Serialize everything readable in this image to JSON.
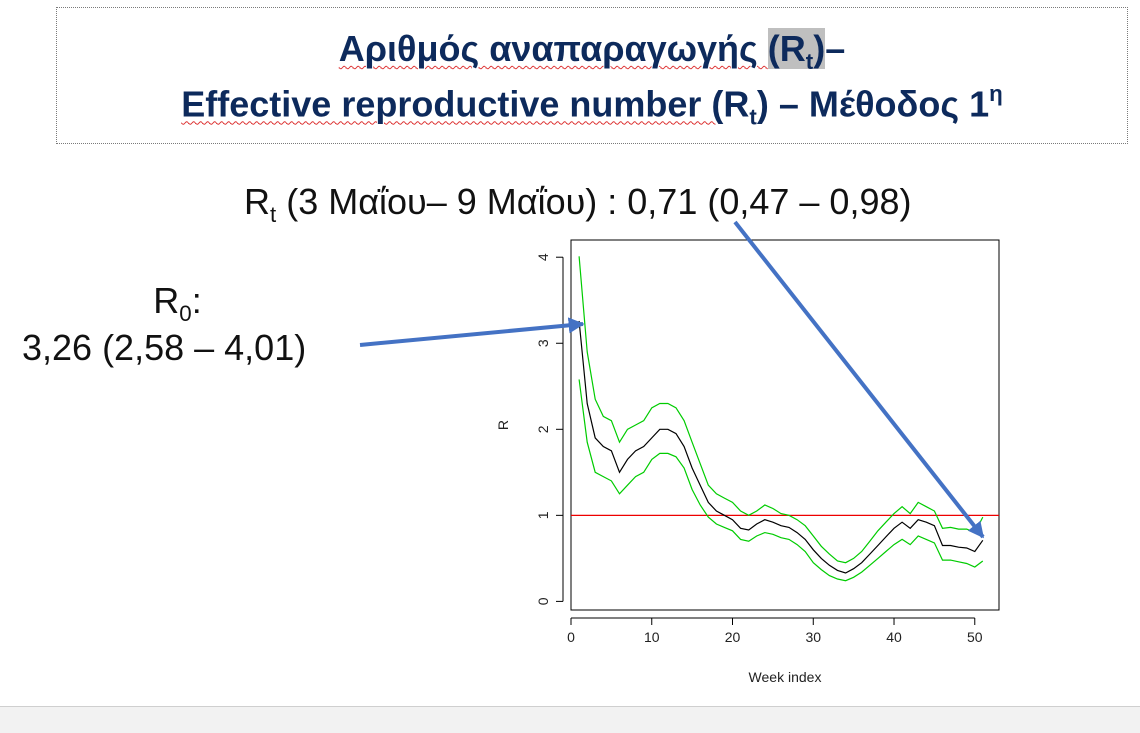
{
  "slide": {
    "title_line1": {
      "text": "Αριθμός αναπαραγωγής ",
      "sym_main": "R",
      "sym_sub": "t",
      "suffix": "–"
    },
    "title_line2": {
      "text": "Effective reproductive number (",
      "sym_main": "R",
      "sym_sub": "t",
      "suffix": ") – Μέθοδος 1",
      "sup": "η"
    },
    "rt_annotation": {
      "sym_main": "R",
      "sym_sub": "t",
      "text": " (3 Μαΐου– 9 Μαΐου) : 0,71 (0,47 – 0,98)"
    },
    "r0_annotation": {
      "sym_main": "R",
      "sym_sub": "0",
      "suffix": ":",
      "value": "3,26 (2,58 – 4,01)"
    }
  },
  "colors": {
    "title": "#0d2a5c",
    "estimate": "#000000",
    "ci": "#00cc00",
    "reference": "#ee0000",
    "arrow": "#4472c4"
  },
  "chart_data": {
    "type": "line",
    "xlabel": "Week index",
    "ylabel": "R",
    "xlim": [
      0,
      53
    ],
    "ylim": [
      -0.1,
      4.2
    ],
    "x_ticks": [
      0,
      10,
      20,
      30,
      40,
      50
    ],
    "y_ticks": [
      0,
      1,
      2,
      3,
      4
    ],
    "reference_line": {
      "y": 1
    },
    "series": [
      {
        "role": "estimate",
        "x": [
          1,
          2,
          3,
          4,
          5,
          6,
          7,
          8,
          9,
          10,
          11,
          12,
          13,
          14,
          15,
          16,
          17,
          18,
          19,
          20,
          21,
          22,
          23,
          24,
          25,
          26,
          27,
          28,
          29,
          30,
          31,
          32,
          33,
          34,
          35,
          36,
          37,
          38,
          39,
          40,
          41,
          42,
          43,
          44,
          45,
          46,
          47,
          48,
          49,
          50,
          51
        ],
        "y": [
          3.26,
          2.3,
          1.9,
          1.8,
          1.75,
          1.5,
          1.65,
          1.75,
          1.8,
          1.9,
          2.0,
          2.0,
          1.95,
          1.8,
          1.55,
          1.35,
          1.15,
          1.05,
          1.0,
          0.95,
          0.85,
          0.83,
          0.9,
          0.95,
          0.92,
          0.88,
          0.86,
          0.8,
          0.72,
          0.6,
          0.5,
          0.42,
          0.36,
          0.33,
          0.38,
          0.45,
          0.55,
          0.65,
          0.75,
          0.85,
          0.92,
          0.85,
          0.95,
          0.92,
          0.88,
          0.65,
          0.65,
          0.63,
          0.62,
          0.58,
          0.71
        ]
      },
      {
        "role": "upper",
        "x": [
          1,
          2,
          3,
          4,
          5,
          6,
          7,
          8,
          9,
          10,
          11,
          12,
          13,
          14,
          15,
          16,
          17,
          18,
          19,
          20,
          21,
          22,
          23,
          24,
          25,
          26,
          27,
          28,
          29,
          30,
          31,
          32,
          33,
          34,
          35,
          36,
          37,
          38,
          39,
          40,
          41,
          42,
          43,
          44,
          45,
          46,
          47,
          48,
          49,
          50,
          51
        ],
        "y": [
          4.01,
          2.9,
          2.35,
          2.15,
          2.1,
          1.85,
          2.0,
          2.05,
          2.1,
          2.25,
          2.3,
          2.3,
          2.25,
          2.1,
          1.85,
          1.6,
          1.35,
          1.25,
          1.2,
          1.15,
          1.05,
          1.0,
          1.05,
          1.12,
          1.08,
          1.02,
          1.0,
          0.95,
          0.88,
          0.76,
          0.64,
          0.55,
          0.47,
          0.45,
          0.5,
          0.58,
          0.7,
          0.82,
          0.92,
          1.02,
          1.1,
          1.02,
          1.15,
          1.1,
          1.05,
          0.85,
          0.86,
          0.84,
          0.84,
          0.8,
          0.98
        ]
      },
      {
        "role": "lower",
        "x": [
          1,
          2,
          3,
          4,
          5,
          6,
          7,
          8,
          9,
          10,
          11,
          12,
          13,
          14,
          15,
          16,
          17,
          18,
          19,
          20,
          21,
          22,
          23,
          24,
          25,
          26,
          27,
          28,
          29,
          30,
          31,
          32,
          33,
          34,
          35,
          36,
          37,
          38,
          39,
          40,
          41,
          42,
          43,
          44,
          45,
          46,
          47,
          48,
          49,
          50,
          51
        ],
        "y": [
          2.58,
          1.85,
          1.5,
          1.45,
          1.4,
          1.25,
          1.35,
          1.45,
          1.5,
          1.65,
          1.72,
          1.72,
          1.68,
          1.55,
          1.3,
          1.12,
          0.98,
          0.9,
          0.86,
          0.82,
          0.72,
          0.7,
          0.76,
          0.8,
          0.78,
          0.74,
          0.72,
          0.66,
          0.58,
          0.45,
          0.37,
          0.3,
          0.26,
          0.24,
          0.28,
          0.34,
          0.42,
          0.5,
          0.58,
          0.66,
          0.72,
          0.66,
          0.76,
          0.72,
          0.68,
          0.48,
          0.48,
          0.46,
          0.44,
          0.4,
          0.47
        ]
      }
    ]
  }
}
